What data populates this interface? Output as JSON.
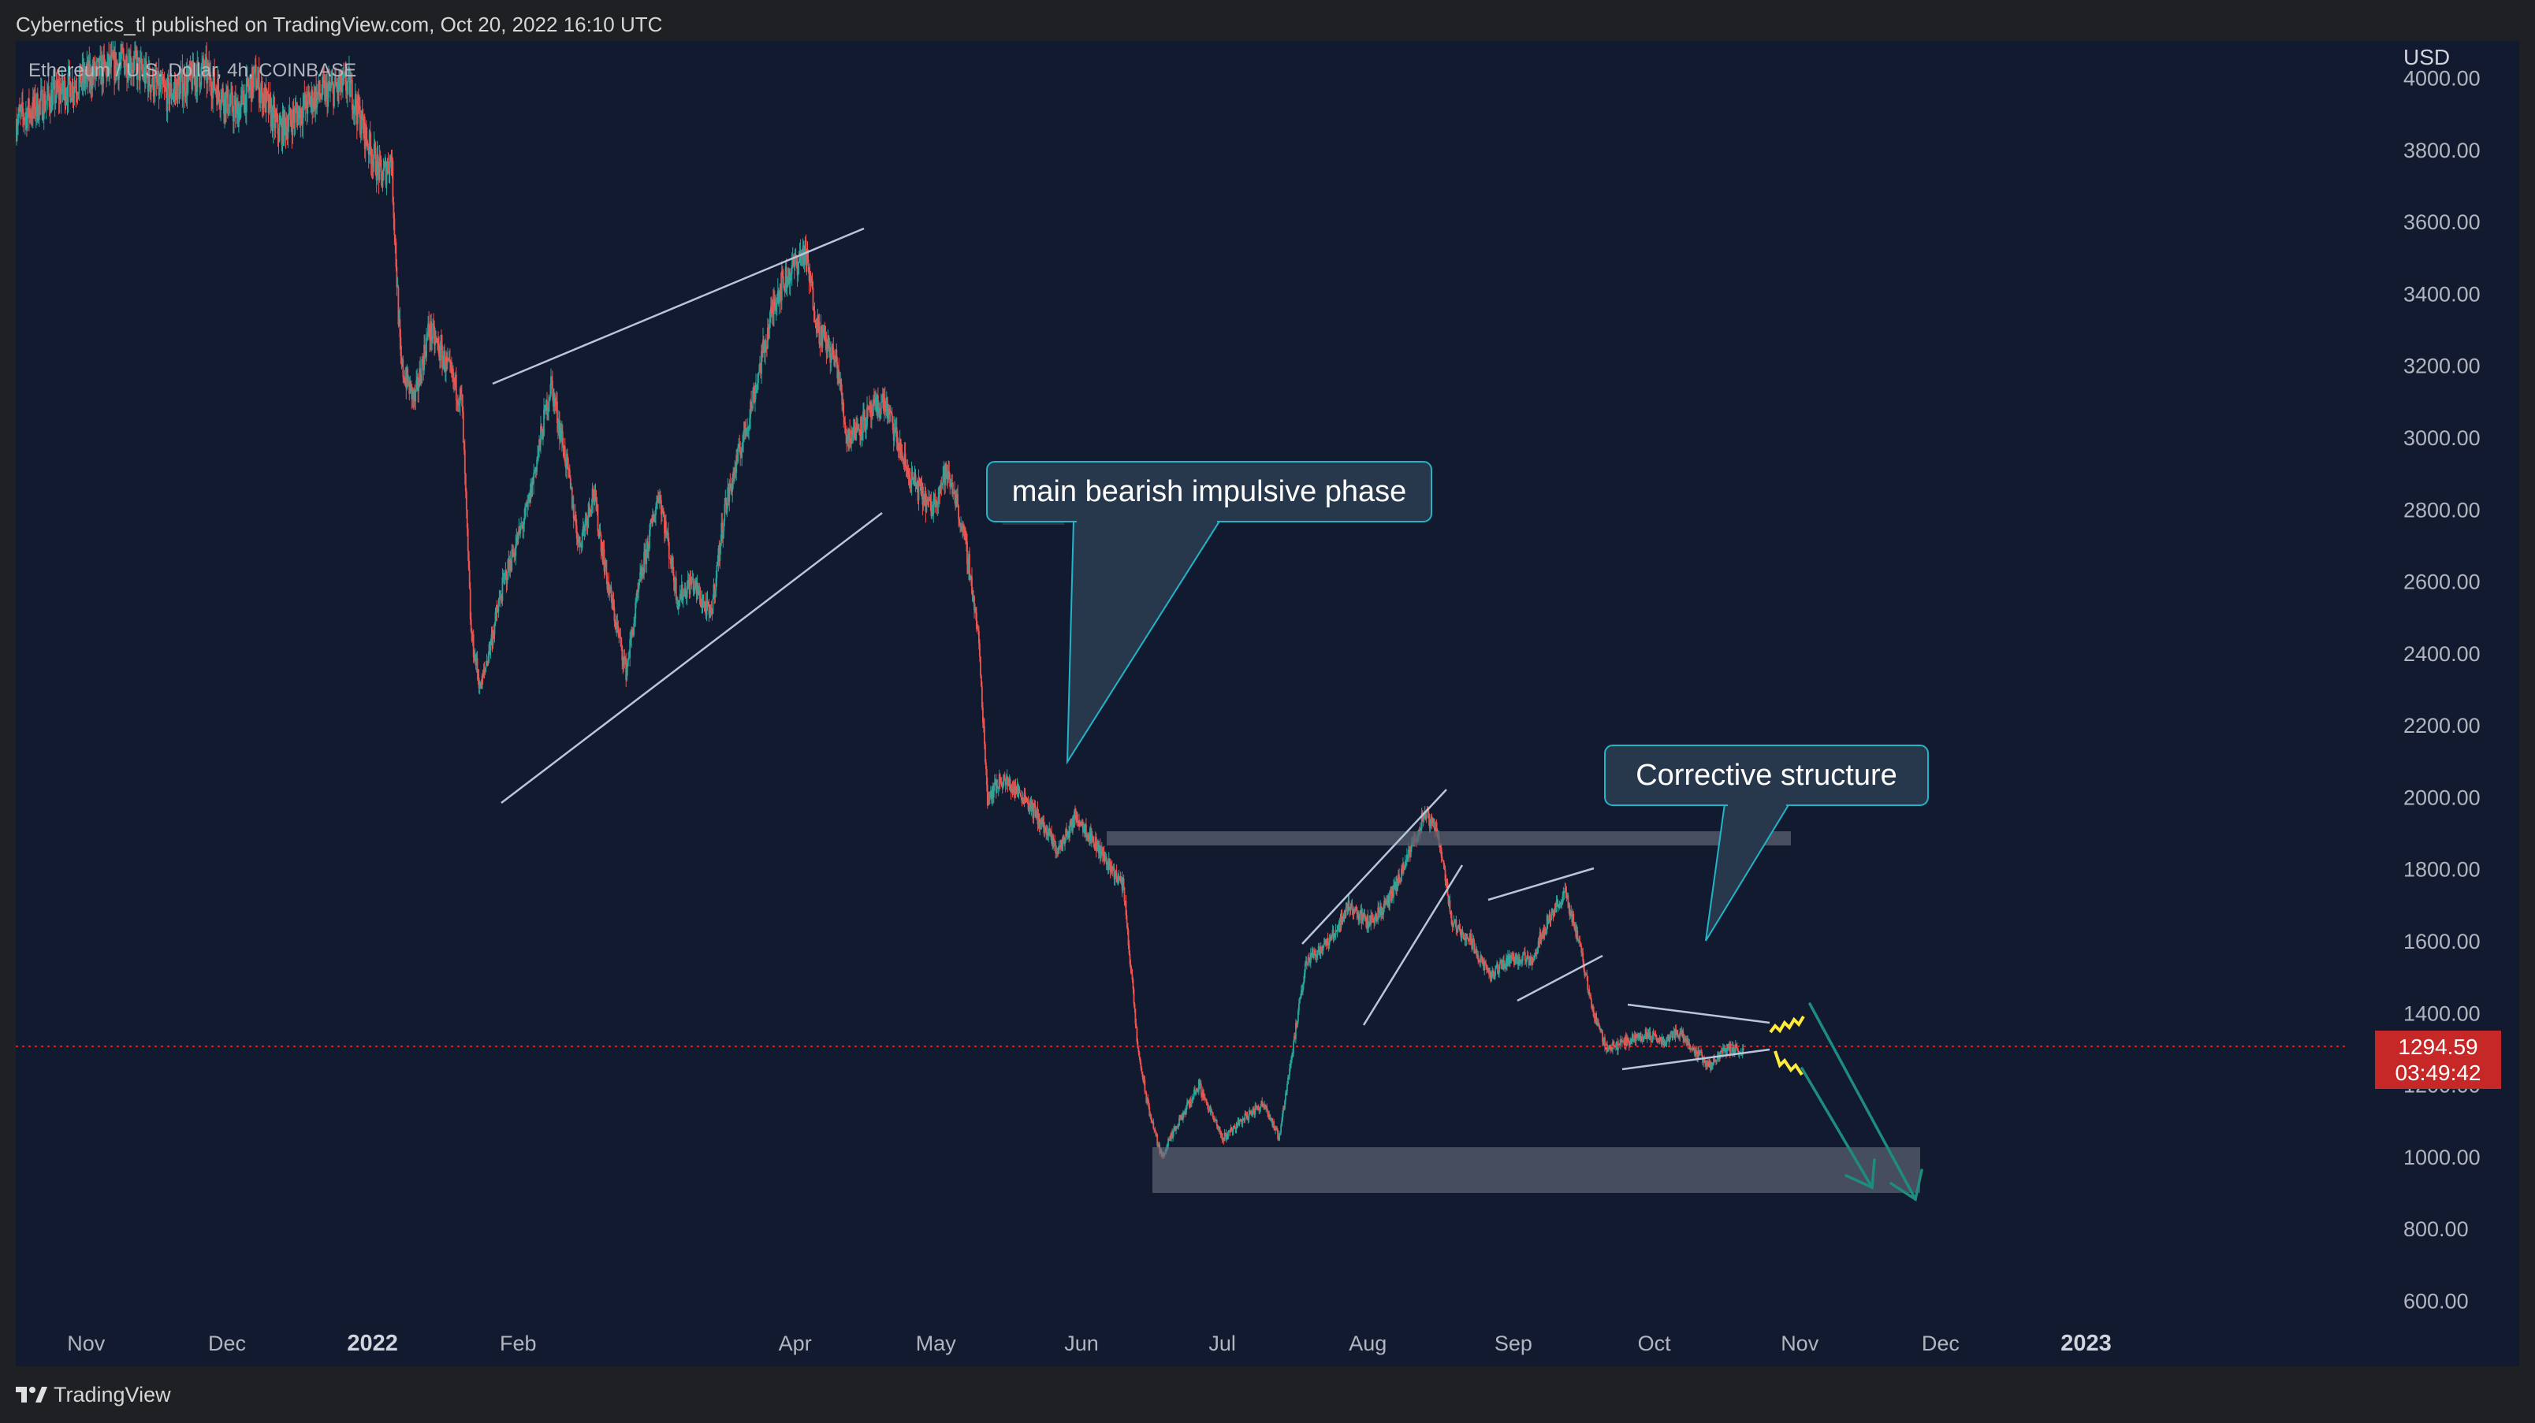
{
  "header": {
    "publisher_line": "Cybernetics_tl published on TradingView.com, Oct 20, 2022 16:10 UTC"
  },
  "footer": {
    "brand": "TradingView",
    "logo_icon": "tradingview-logo-icon"
  },
  "colors": {
    "background": "#111a2f",
    "frame": "#1f2024",
    "candle_up": "#26a69a",
    "candle_down": "#ef5350",
    "trendline": "#b8c6dc",
    "zone": "#5a6070",
    "callout_fill": "#27384d",
    "callout_border": "#22b5c8",
    "projection_arrow": "#1e8c7e",
    "zigzag": "#ffeb3b",
    "price_badge": "#c62828",
    "axis_text": "#b2b5be"
  },
  "chart_data": {
    "type": "candlestick",
    "title": "Ethereum / U.S. Dollar, 4h, COINBASE",
    "symbol": "Ethereum / U.S. Dollar",
    "interval": "4h",
    "exchange": "COINBASE",
    "currency": "USD",
    "ylim": [
      520,
      4080
    ],
    "y_ticks": [
      "4000.00",
      "3800.00",
      "3600.00",
      "3400.00",
      "3200.00",
      "3000.00",
      "2800.00",
      "2600.00",
      "2400.00",
      "2200.00",
      "2000.00",
      "1800.00",
      "1600.00",
      "1400.00",
      "1200.00",
      "1000.00",
      "800.00",
      "600.00"
    ],
    "x_ticks": [
      {
        "label": "Nov",
        "date": "2021-11-01",
        "bold": false
      },
      {
        "label": "Dec",
        "date": "2021-12-01",
        "bold": false
      },
      {
        "label": "2022",
        "date": "2022-01-01",
        "bold": true
      },
      {
        "label": "Feb",
        "date": "2022-02-01",
        "bold": false
      },
      {
        "label": "Apr",
        "date": "2022-04-01",
        "bold": false
      },
      {
        "label": "May",
        "date": "2022-05-01",
        "bold": false
      },
      {
        "label": "Jun",
        "date": "2022-06-01",
        "bold": false
      },
      {
        "label": "Jul",
        "date": "2022-07-01",
        "bold": false
      },
      {
        "label": "Aug",
        "date": "2022-08-01",
        "bold": false
      },
      {
        "label": "Sep",
        "date": "2022-09-01",
        "bold": false
      },
      {
        "label": "Oct",
        "date": "2022-10-01",
        "bold": false
      },
      {
        "label": "Nov",
        "date": "2022-11-01",
        "bold": false
      },
      {
        "label": "Dec",
        "date": "2022-12-01",
        "bold": false
      },
      {
        "label": "2023",
        "date": "2023-01-01",
        "bold": true
      }
    ],
    "x_range": [
      "2021-10-17",
      "2023-02-26"
    ],
    "price_path": [
      [
        "2021-10-17",
        3880
      ],
      [
        "2021-10-25",
        3950
      ],
      [
        "2021-11-01",
        4000
      ],
      [
        "2021-11-10",
        4050
      ],
      [
        "2021-11-18",
        3950
      ],
      [
        "2021-11-26",
        4020
      ],
      [
        "2021-12-03",
        3900
      ],
      [
        "2021-12-07",
        4000
      ],
      [
        "2021-12-12",
        3850
      ],
      [
        "2021-12-20",
        3950
      ],
      [
        "2021-12-27",
        3980
      ],
      [
        "2021-12-31",
        3820
      ],
      [
        "2022-01-03",
        3720
      ],
      [
        "2022-01-05",
        3780
      ],
      [
        "2022-01-07",
        3200
      ],
      [
        "2022-01-10",
        3100
      ],
      [
        "2022-01-13",
        3300
      ],
      [
        "2022-01-15",
        3250
      ],
      [
        "2022-01-20",
        3100
      ],
      [
        "2022-01-22",
        2450
      ],
      [
        "2022-01-24",
        2300
      ],
      [
        "2022-01-29",
        2600
      ],
      [
        "2022-02-03",
        2800
      ],
      [
        "2022-02-08",
        3150
      ],
      [
        "2022-02-11",
        2950
      ],
      [
        "2022-02-14",
        2700
      ],
      [
        "2022-02-17",
        2850
      ],
      [
        "2022-02-20",
        2600
      ],
      [
        "2022-02-24",
        2350
      ],
      [
        "2022-02-27",
        2600
      ],
      [
        "2022-03-03",
        2850
      ],
      [
        "2022-03-07",
        2550
      ],
      [
        "2022-03-10",
        2600
      ],
      [
        "2022-03-14",
        2500
      ],
      [
        "2022-03-17",
        2800
      ],
      [
        "2022-03-22",
        3050
      ],
      [
        "2022-03-28",
        3400
      ],
      [
        "2022-04-01",
        3480
      ],
      [
        "2022-04-03",
        3520
      ],
      [
        "2022-04-06",
        3300
      ],
      [
        "2022-04-10",
        3200
      ],
      [
        "2022-04-12",
        3000
      ],
      [
        "2022-04-16",
        3050
      ],
      [
        "2022-04-20",
        3100
      ],
      [
        "2022-04-25",
        2900
      ],
      [
        "2022-04-30",
        2800
      ],
      [
        "2022-05-03",
        2900
      ],
      [
        "2022-05-05",
        2850
      ],
      [
        "2022-05-08",
        2650
      ],
      [
        "2022-05-10",
        2450
      ],
      [
        "2022-05-12",
        2000
      ],
      [
        "2022-05-15",
        2050
      ],
      [
        "2022-05-20",
        2000
      ],
      [
        "2022-05-27",
        1850
      ],
      [
        "2022-05-31",
        1950
      ],
      [
        "2022-06-05",
        1850
      ],
      [
        "2022-06-10",
        1750
      ],
      [
        "2022-06-13",
        1300
      ],
      [
        "2022-06-15",
        1150
      ],
      [
        "2022-06-18",
        1000
      ],
      [
        "2022-06-22",
        1100
      ],
      [
        "2022-06-26",
        1200
      ],
      [
        "2022-07-01",
        1050
      ],
      [
        "2022-07-05",
        1100
      ],
      [
        "2022-07-10",
        1150
      ],
      [
        "2022-07-13",
        1050
      ],
      [
        "2022-07-16",
        1300
      ],
      [
        "2022-07-19",
        1550
      ],
      [
        "2022-07-24",
        1600
      ],
      [
        "2022-07-28",
        1700
      ],
      [
        "2022-08-01",
        1650
      ],
      [
        "2022-08-05",
        1700
      ],
      [
        "2022-08-08",
        1780
      ],
      [
        "2022-08-13",
        1950
      ],
      [
        "2022-08-16",
        1900
      ],
      [
        "2022-08-19",
        1650
      ],
      [
        "2022-08-23",
        1600
      ],
      [
        "2022-08-27",
        1500
      ],
      [
        "2022-08-31",
        1550
      ],
      [
        "2022-09-05",
        1550
      ],
      [
        "2022-09-08",
        1650
      ],
      [
        "2022-09-12",
        1730
      ],
      [
        "2022-09-15",
        1600
      ],
      [
        "2022-09-18",
        1400
      ],
      [
        "2022-09-21",
        1300
      ],
      [
        "2022-09-25",
        1320
      ],
      [
        "2022-09-29",
        1340
      ],
      [
        "2022-10-03",
        1320
      ],
      [
        "2022-10-06",
        1350
      ],
      [
        "2022-10-10",
        1290
      ],
      [
        "2022-10-13",
        1250
      ],
      [
        "2022-10-16",
        1300
      ],
      [
        "2022-10-20",
        1295
      ]
    ],
    "last_price": "1294.59",
    "countdown": "03:49:42",
    "annotations": [
      {
        "kind": "callout",
        "text": "main bearish impulsive phase"
      },
      {
        "kind": "callout",
        "text": "Corrective structure"
      }
    ]
  }
}
